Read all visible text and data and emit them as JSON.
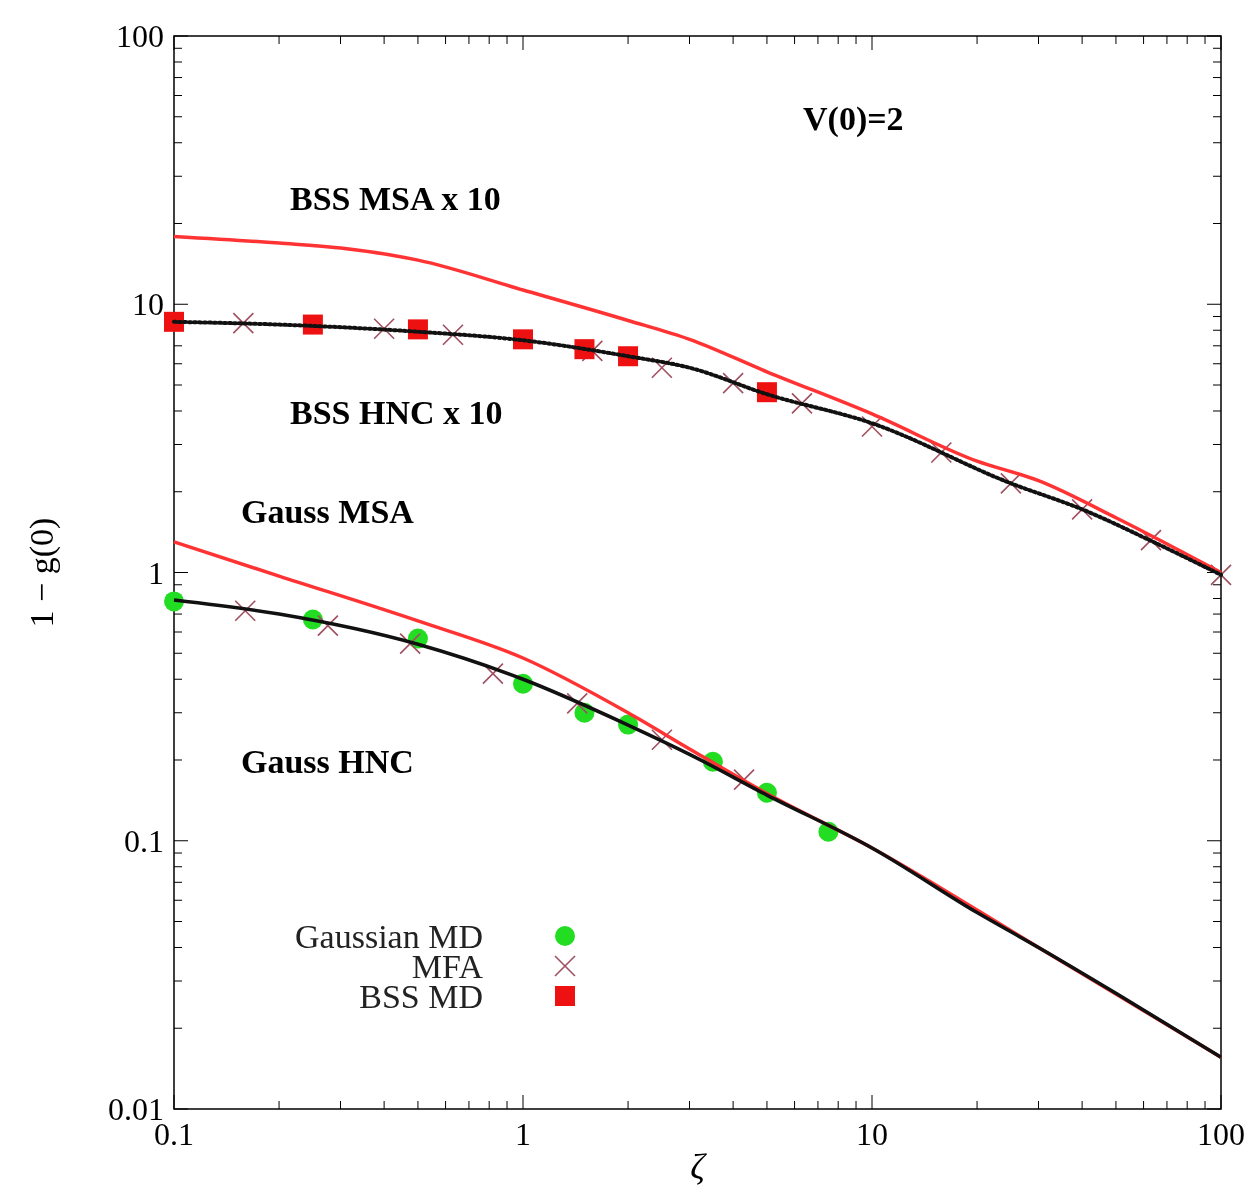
{
  "chart_data": {
    "type": "line",
    "xlabel": "ζ",
    "ylabel": "1 − g(0)",
    "log": "xy",
    "xlim": [
      0.1,
      100
    ],
    "ylim": [
      0.01,
      100
    ],
    "xticks": [
      {
        "value": 0.1,
        "label": "0.1"
      },
      {
        "value": 0.2,
        "label": null
      },
      {
        "value": 0.3,
        "label": null
      },
      {
        "value": 0.4,
        "label": null
      },
      {
        "value": 0.5,
        "label": null
      },
      {
        "value": 0.6,
        "label": null
      },
      {
        "value": 0.7,
        "label": null
      },
      {
        "value": 0.8,
        "label": null
      },
      {
        "value": 0.9,
        "label": null
      },
      1,
      {
        "value": 2,
        "label": null
      },
      {
        "value": 3,
        "label": null
      },
      {
        "value": 4,
        "label": null
      },
      {
        "value": 5,
        "label": null
      },
      {
        "value": 6,
        "label": null
      },
      {
        "value": 7,
        "label": null
      },
      {
        "value": 8,
        "label": null
      },
      {
        "value": 9,
        "label": null
      },
      10,
      {
        "value": 20,
        "label": null
      },
      {
        "value": 30,
        "label": null
      },
      {
        "value": 40,
        "label": null
      },
      {
        "value": 50,
        "label": null
      },
      {
        "value": 60,
        "label": null
      },
      {
        "value": 70,
        "label": null
      },
      {
        "value": 80,
        "label": null
      },
      {
        "value": 90,
        "label": null
      },
      100
    ],
    "yticks": [
      {
        "value": 0.01,
        "label": "0.01"
      },
      {
        "value": 0.02,
        "label": null
      },
      {
        "value": 0.03,
        "label": null
      },
      {
        "value": 0.04,
        "label": null
      },
      {
        "value": 0.05,
        "label": null
      },
      {
        "value": 0.06,
        "label": null
      },
      {
        "value": 0.07,
        "label": null
      },
      {
        "value": 0.08,
        "label": null
      },
      {
        "value": 0.09,
        "label": null
      },
      {
        "value": 0.1,
        "label": "0.1"
      },
      {
        "value": 0.2,
        "label": null
      },
      {
        "value": 0.3,
        "label": null
      },
      {
        "value": 0.4,
        "label": null
      },
      {
        "value": 0.5,
        "label": null
      },
      {
        "value": 0.6,
        "label": null
      },
      {
        "value": 0.7,
        "label": null
      },
      {
        "value": 0.8,
        "label": null
      },
      {
        "value": 0.9,
        "label": null
      },
      1,
      {
        "value": 2,
        "label": null
      },
      {
        "value": 3,
        "label": null
      },
      {
        "value": 4,
        "label": null
      },
      {
        "value": 5,
        "label": null
      },
      {
        "value": 6,
        "label": null
      },
      {
        "value": 7,
        "label": null
      },
      {
        "value": 8,
        "label": null
      },
      {
        "value": 9,
        "label": null
      },
      10,
      {
        "value": 20,
        "label": null
      },
      {
        "value": 30,
        "label": null
      },
      {
        "value": 40,
        "label": null
      },
      {
        "value": 50,
        "label": null
      },
      {
        "value": 60,
        "label": null
      },
      {
        "value": 70,
        "label": null
      },
      {
        "value": 80,
        "label": null
      },
      {
        "value": 90,
        "label": null
      },
      100
    ],
    "grid": false,
    "legend": "bottom left",
    "annotations": [
      "V(0)=2",
      "BSS MSA x 10",
      "BSS HNC x 10",
      "Gauss MSA",
      "Gauss HNC"
    ],
    "series": [
      {
        "color": "#ff3333",
        "line_style": "solid",
        "x": [
          0.1,
          0.2,
          0.3,
          0.5,
          1,
          2,
          3,
          5,
          10,
          20,
          30,
          50,
          100
        ],
        "values": [
          17.9,
          16.9,
          16.2,
          14.6,
          11.3,
          8.7,
          7.4,
          5.6,
          3.9,
          2.6,
          2.2,
          1.6,
          1.0
        ]
      },
      {
        "color": "#111111",
        "line_style": "dotted",
        "x": [
          0.1,
          0.2,
          0.5,
          1,
          2,
          3,
          5,
          10,
          25,
          40,
          64,
          100
        ],
        "values": [
          8.6,
          8.4,
          7.9,
          7.34,
          6.4,
          5.8,
          4.62,
          3.6,
          2.15,
          1.72,
          1.3,
          0.98
        ]
      },
      {
        "color": "#ff3333",
        "line_style": "solid",
        "x": [
          0.1,
          0.2,
          0.5,
          1,
          2,
          3,
          5,
          10,
          30,
          100
        ],
        "values": [
          1.3,
          0.97,
          0.66,
          0.48,
          0.3,
          0.22,
          0.15,
          0.094,
          0.04,
          0.0156
        ]
      },
      {
        "color": "#111111",
        "line_style": "solid",
        "x": [
          0.1,
          0.2,
          0.5,
          1,
          2,
          3,
          5,
          10,
          20,
          30,
          50,
          100
        ],
        "values": [
          0.79,
          0.7,
          0.54,
          0.4,
          0.27,
          0.21,
          0.148,
          0.094,
          0.054,
          0.04,
          0.027,
          0.0156
        ]
      },
      {
        "type": "scatter",
        "name": "Gaussian MD",
        "color": "#22dd22",
        "marker": "circle",
        "x": [
          0.1,
          0.25,
          0.5,
          1,
          1.5,
          2,
          3.5,
          5,
          7.5
        ],
        "values": [
          0.78,
          0.668,
          0.567,
          0.385,
          0.3,
          0.271,
          0.197,
          0.151,
          0.108
        ]
      },
      {
        "type": "scatter",
        "name": "MFA",
        "color": "#a05060",
        "marker": "cross",
        "x": [
          0.158,
          0.4,
          0.63,
          1.58,
          2.5,
          4,
          6.3,
          10,
          15.8,
          25,
          40,
          63,
          100,
          0.16,
          0.276,
          0.475,
          0.82,
          1.43,
          2.5,
          4.3
        ],
        "values": [
          8.5,
          8.1,
          7.7,
          6.7,
          5.8,
          5.08,
          4.27,
          3.5,
          2.8,
          2.15,
          1.72,
          1.32,
          0.98,
          0.72,
          0.634,
          0.543,
          0.42,
          0.325,
          0.238,
          0.169
        ]
      },
      {
        "type": "scatter",
        "name": "BSS MD",
        "color": "#ee1111",
        "marker": "square",
        "x": [
          0.1,
          0.25,
          0.5,
          1,
          1.5,
          2,
          5
        ],
        "values": [
          8.6,
          8.4,
          8.06,
          7.4,
          6.8,
          6.4,
          4.7
        ]
      }
    ]
  }
}
